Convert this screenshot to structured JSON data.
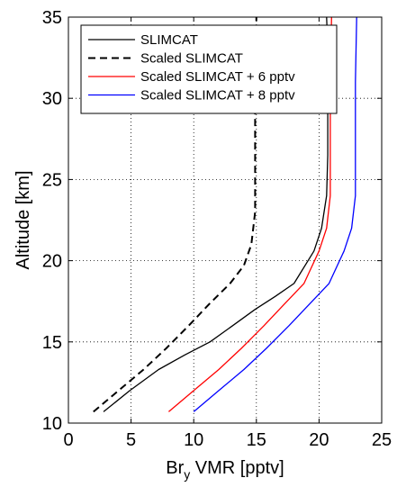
{
  "chart_data": {
    "type": "line",
    "title": "",
    "xlabel_main": "Br",
    "xlabel_sub": "y",
    "xlabel_rest": " VMR [pptv]",
    "ylabel": "Altitude [km]",
    "xlim": [
      0,
      25
    ],
    "ylim": [
      10,
      35
    ],
    "xticks": [
      0,
      5,
      10,
      15,
      20,
      25
    ],
    "yticks": [
      10,
      15,
      20,
      25,
      30,
      35
    ],
    "grid": true,
    "legend_position": "top-left",
    "series": [
      {
        "name": "SLIMCAT",
        "color": "#000000",
        "style": "solid",
        "x": [
          2.8,
          4.9,
          7.2,
          9.3,
          11.3,
          13.1,
          14.9,
          16.5,
          18.0,
          19.6,
          20.2,
          20.6,
          20.7,
          20.7,
          20.7,
          20.7,
          20.6
        ],
        "y": [
          10.7,
          12.0,
          13.3,
          14.2,
          15.0,
          16.0,
          17.0,
          17.8,
          18.6,
          20.6,
          22.0,
          24.0,
          26.5,
          28.5,
          31.0,
          33.0,
          35.0
        ]
      },
      {
        "name": "Scaled SLIMCAT",
        "color": "#000000",
        "style": "dashed",
        "x": [
          2.0,
          4.0,
          6.0,
          7.8,
          9.6,
          11.2,
          12.9,
          14.0,
          14.6,
          14.9,
          14.9,
          14.9,
          14.9,
          15.0
        ],
        "y": [
          10.7,
          12.0,
          13.3,
          14.6,
          16.0,
          17.3,
          18.6,
          19.7,
          21.0,
          23.0,
          25.0,
          27.0,
          30.0,
          35.0
        ]
      },
      {
        "name": "Scaled SLIMCAT + 6 pptv",
        "color": "#ff0000",
        "style": "solid",
        "x": [
          8.0,
          10.0,
          12.0,
          13.8,
          15.6,
          17.2,
          18.8,
          20.0,
          20.6,
          20.9,
          20.9,
          20.9,
          20.9,
          21.0
        ],
        "y": [
          10.7,
          12.0,
          13.3,
          14.6,
          16.0,
          17.3,
          18.6,
          20.6,
          22.0,
          24.0,
          26.0,
          28.0,
          31.0,
          35.0
        ]
      },
      {
        "name": "Scaled SLIMCAT + 8 pptv",
        "color": "#0000ff",
        "style": "solid",
        "x": [
          10.0,
          12.0,
          14.0,
          15.8,
          17.6,
          19.2,
          20.8,
          22.0,
          22.6,
          22.9,
          22.9,
          22.9,
          22.9,
          23.0
        ],
        "y": [
          10.7,
          12.0,
          13.3,
          14.6,
          16.0,
          17.3,
          18.6,
          20.6,
          22.0,
          24.0,
          26.0,
          28.0,
          31.0,
          35.0
        ]
      }
    ]
  }
}
